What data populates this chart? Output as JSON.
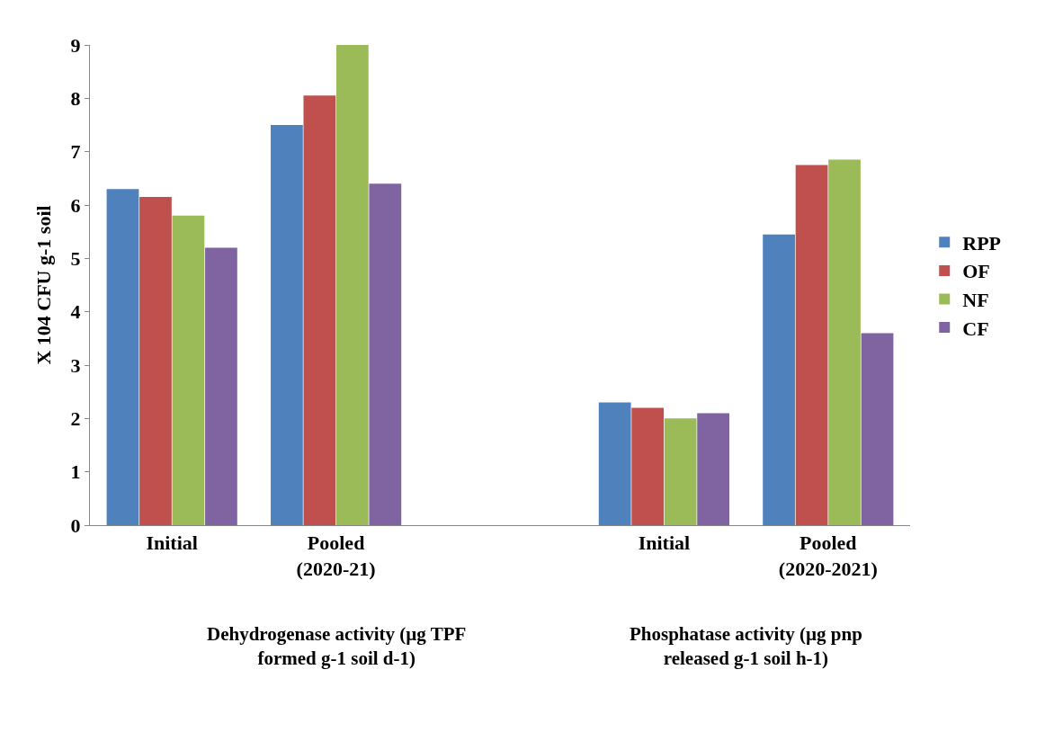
{
  "chart_data": {
    "type": "bar",
    "ylabel": "X 104 CFU g-1 soil",
    "categories": [
      "Initial",
      "Pooled (2020-21)",
      null,
      "Initial",
      "Pooled (2020-2021)"
    ],
    "series": [
      {
        "name": "RPP",
        "color": "#4f81bd",
        "values": [
          6.3,
          7.5,
          null,
          2.3,
          5.45
        ]
      },
      {
        "name": "OF",
        "color": "#c0504d",
        "values": [
          6.15,
          8.05,
          null,
          2.2,
          6.75
        ]
      },
      {
        "name": "NF",
        "color": "#9bbb59",
        "values": [
          5.8,
          9.0,
          null,
          2.0,
          6.85
        ]
      },
      {
        "name": "CF",
        "color": "#8064a2",
        "values": [
          5.2,
          6.4,
          null,
          2.1,
          3.6
        ]
      }
    ],
    "ylim": [
      0,
      9
    ],
    "yticks": [
      0,
      1,
      2,
      3,
      4,
      5,
      6,
      7,
      8,
      9
    ],
    "legend": "right",
    "annotations": [
      "Dehydrogenase activity (µg TPF formed g-1 soil d-1)",
      "Phosphatase activity (µg pnp released g-1 soil h-1)"
    ]
  }
}
